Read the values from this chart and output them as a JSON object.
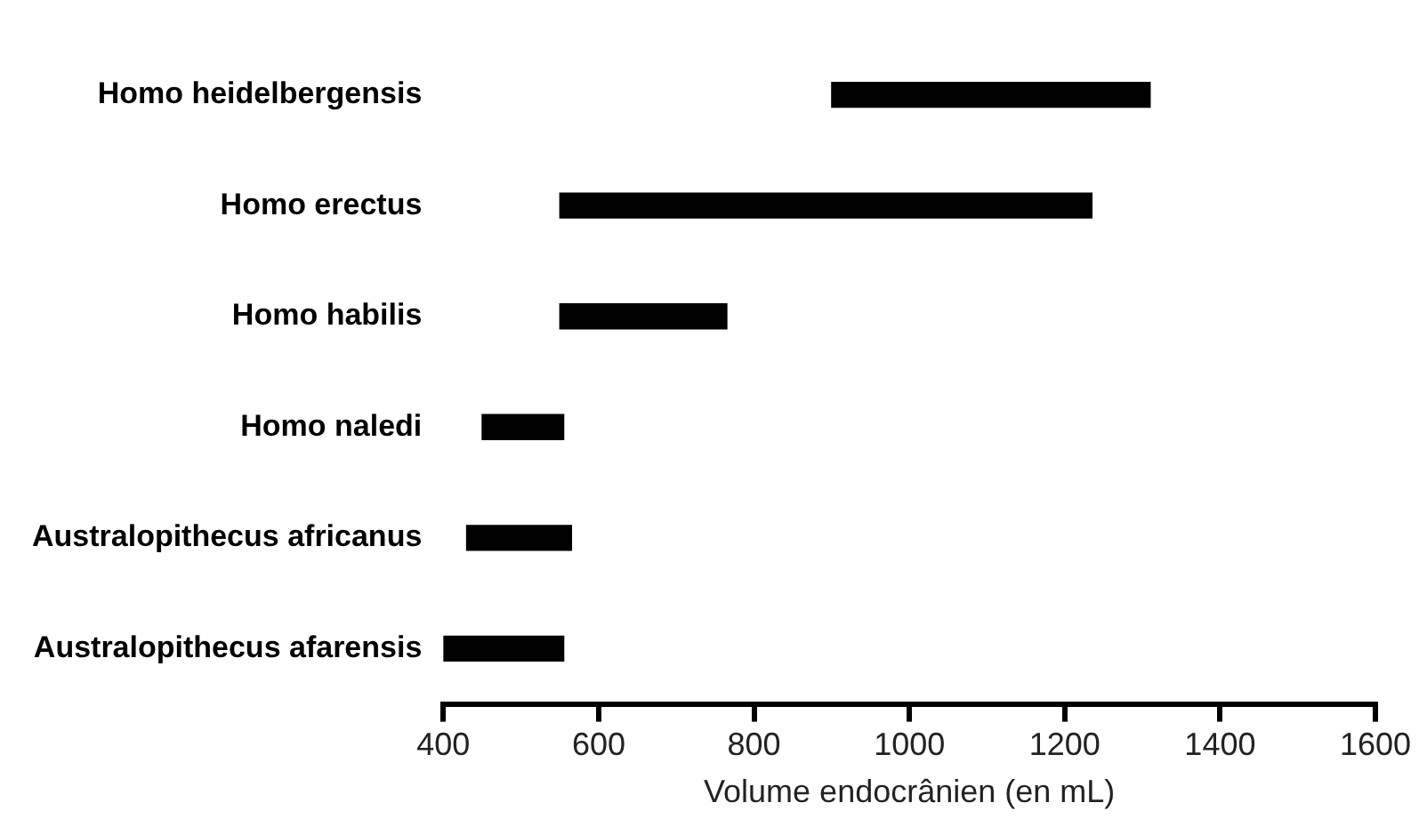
{
  "chart_data": {
    "type": "bar",
    "orientation": "horizontal",
    "xlabel": "Volume endocrânien (en mL)",
    "categories": [
      "Homo heidelbergensis",
      "Homo erectus",
      "Homo habilis",
      "Homo naledi",
      "Australopithecus africanus",
      "Australopithecus afarensis"
    ],
    "base": [
      900,
      550,
      550,
      450,
      430,
      400
    ],
    "values": [
      410,
      685,
      215,
      105,
      135,
      155
    ],
    "color": "#000000",
    "xlim": [
      400,
      1600
    ],
    "xticks": [
      400,
      600,
      800,
      1000,
      1200,
      1400,
      1600
    ],
    "grid": false,
    "legend": false
  }
}
